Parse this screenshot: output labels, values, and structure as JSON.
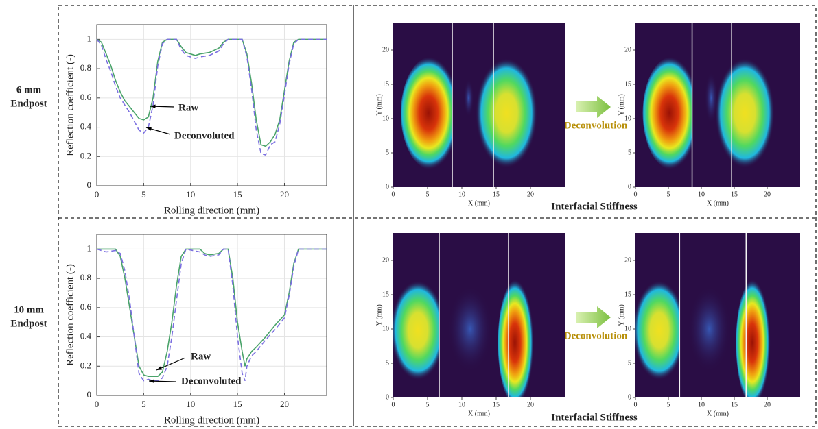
{
  "row_labels": [
    [
      "6 mm",
      "Endpost"
    ],
    [
      "10 mm",
      "Endpost"
    ]
  ],
  "arrow_labels": [
    "Deconvolution",
    "Deconvolution"
  ],
  "captions": [
    "Interfacial Stiffness",
    "Interfacial Stiffness"
  ],
  "chart_data": [
    {
      "type": "line",
      "xlabel": "Rolling direction (mm)",
      "ylabel": "Reflection coefficient (-)",
      "xlim": [
        0,
        24.5
      ],
      "ylim": [
        0,
        1.1
      ],
      "xticks": [
        0,
        5,
        10,
        15,
        20
      ],
      "yticks": [
        0,
        0.2,
        0.4,
        0.6,
        0.8,
        1
      ],
      "annotations": [
        "Raw",
        "Deconvoluted"
      ],
      "x": [
        0,
        0.5,
        1,
        1.5,
        2,
        2.5,
        3,
        3.5,
        4,
        4.5,
        5,
        5.5,
        6,
        6.5,
        7,
        7.5,
        8.5,
        9,
        9.5,
        10,
        10.5,
        11,
        12,
        13,
        13.5,
        14,
        15.5,
        16,
        16.5,
        17,
        17.5,
        18,
        18.5,
        19,
        19.5,
        20,
        20.5,
        21,
        21.5,
        24.5
      ],
      "series": [
        {
          "color": "#4aa36a",
          "linestyle": "solid",
          "values": [
            1,
            0.98,
            0.9,
            0.82,
            0.72,
            0.64,
            0.58,
            0.54,
            0.5,
            0.46,
            0.45,
            0.47,
            0.6,
            0.85,
            0.98,
            1,
            1,
            0.95,
            0.91,
            0.9,
            0.89,
            0.9,
            0.91,
            0.94,
            0.98,
            1,
            1,
            0.9,
            0.7,
            0.45,
            0.28,
            0.27,
            0.3,
            0.35,
            0.45,
            0.65,
            0.85,
            0.98,
            1,
            1
          ]
        },
        {
          "color": "#7b6fe0",
          "linestyle": "dashed",
          "values": [
            1,
            0.96,
            0.86,
            0.78,
            0.68,
            0.6,
            0.55,
            0.5,
            0.44,
            0.38,
            0.36,
            0.4,
            0.55,
            0.82,
            0.97,
            1,
            1,
            0.93,
            0.89,
            0.88,
            0.87,
            0.88,
            0.89,
            0.92,
            0.97,
            1,
            1,
            0.88,
            0.66,
            0.38,
            0.22,
            0.21,
            0.28,
            0.3,
            0.42,
            0.62,
            0.83,
            0.97,
            1,
            1
          ]
        }
      ]
    },
    {
      "type": "heatmap",
      "xlabel": "X (mm)",
      "ylabel": "Y (mm)",
      "xlim": [
        0,
        25
      ],
      "ylim": [
        0,
        24
      ],
      "xticks": [
        0,
        5,
        10,
        15,
        20
      ],
      "yticks": [
        0,
        5,
        10,
        15,
        20
      ],
      "vlines": [
        8.6,
        14.6
      ]
    },
    {
      "type": "heatmap",
      "xlabel": "X (mm)",
      "ylabel": "Y (mm)",
      "xlim": [
        0,
        25
      ],
      "ylim": [
        0,
        24
      ],
      "xticks": [
        0,
        5,
        10,
        15,
        20
      ],
      "yticks": [
        0,
        5,
        10,
        15,
        20
      ],
      "vlines": [
        8.6,
        14.6
      ]
    },
    {
      "type": "line",
      "xlabel": "Rolling direction (mm)",
      "ylabel": "Reflection coefficient (-)",
      "xlim": [
        0,
        24.5
      ],
      "ylim": [
        0,
        1.1
      ],
      "xticks": [
        0,
        5,
        10,
        15,
        20
      ],
      "yticks": [
        0,
        0.2,
        0.4,
        0.6,
        0.8,
        1
      ],
      "annotations": [
        "Raw",
        "Deconvoluted"
      ],
      "x": [
        0,
        1,
        2,
        2.5,
        3,
        3.5,
        4,
        4.5,
        5,
        5.5,
        6,
        6.5,
        7,
        7.5,
        8,
        8.5,
        9,
        9.5,
        11,
        11.5,
        12,
        13,
        13.5,
        14,
        14.5,
        15,
        15.5,
        15.8,
        16,
        16.5,
        17,
        18,
        19,
        20,
        20.5,
        21,
        21.5,
        24.5
      ],
      "series": [
        {
          "color": "#4aa36a",
          "linestyle": "solid",
          "values": [
            1,
            1,
            1,
            0.95,
            0.8,
            0.6,
            0.4,
            0.2,
            0.14,
            0.13,
            0.13,
            0.13,
            0.16,
            0.3,
            0.5,
            0.75,
            0.95,
            1,
            1,
            0.97,
            0.96,
            0.97,
            1,
            1,
            0.8,
            0.5,
            0.3,
            0.2,
            0.25,
            0.3,
            0.33,
            0.4,
            0.48,
            0.55,
            0.7,
            0.9,
            1,
            1
          ]
        },
        {
          "color": "#7b6fe0",
          "linestyle": "dashed",
          "values": [
            1,
            0.98,
            0.99,
            0.97,
            0.85,
            0.65,
            0.4,
            0.15,
            0.1,
            0.11,
            0.1,
            0.1,
            0.12,
            0.2,
            0.4,
            0.65,
            0.9,
            1,
            0.98,
            0.96,
            0.95,
            0.96,
            1,
            1,
            0.75,
            0.4,
            0.15,
            0.1,
            0.2,
            0.27,
            0.3,
            0.38,
            0.45,
            0.53,
            0.68,
            0.88,
            1,
            1
          ]
        }
      ]
    },
    {
      "type": "heatmap",
      "xlabel": "X (mm)",
      "ylabel": "Y (mm)",
      "xlim": [
        0,
        25
      ],
      "ylim": [
        0,
        24
      ],
      "xticks": [
        0,
        5,
        10,
        15,
        20
      ],
      "yticks": [
        0,
        5,
        10,
        15,
        20
      ],
      "vlines": [
        6.7,
        16.8
      ]
    },
    {
      "type": "heatmap",
      "xlabel": "X (mm)",
      "ylabel": "Y (mm)",
      "xlim": [
        0,
        25
      ],
      "ylim": [
        0,
        24
      ],
      "xticks": [
        0,
        5,
        10,
        15,
        20
      ],
      "yticks": [
        0,
        5,
        10,
        15,
        20
      ],
      "vlines": [
        6.7,
        16.8
      ]
    }
  ]
}
